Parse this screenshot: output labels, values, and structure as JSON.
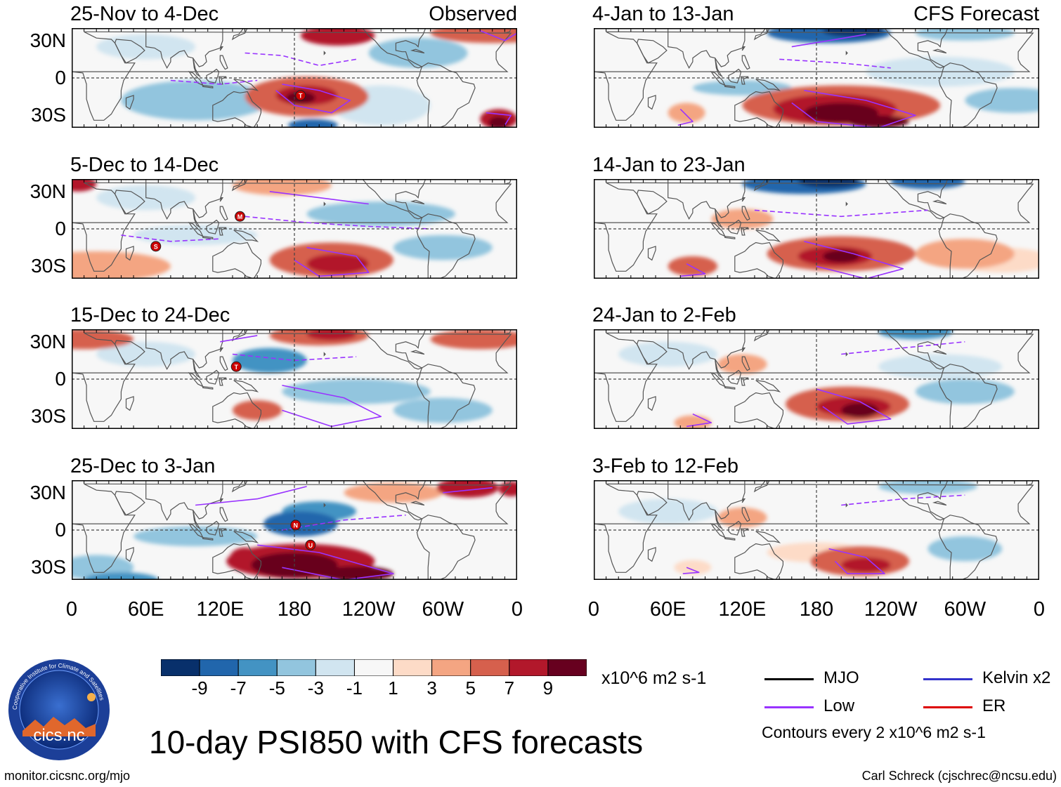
{
  "title": "10-day PSI850 with CFS forecasts",
  "units": "x10^6 m2 s-1",
  "contour_note": "Contours every 2 x10^6 m2 s-1",
  "footer_left": "monitor.cicsnc.org/mjo",
  "footer_right": "Carl Schreck (cjschrec@ncsu.edu)",
  "logo": {
    "text": "cics.nc",
    "ring_text": "Cooperative Institute for Climate and Satellites"
  },
  "column_tags": {
    "observed": "Observed",
    "forecast": "CFS Forecast"
  },
  "lat_labels": [
    "30N",
    "0",
    "30S"
  ],
  "lon_labels": [
    "0",
    "60E",
    "120E",
    "180",
    "120W",
    "60W",
    "0"
  ],
  "colorbar": {
    "labels": [
      "-9",
      "-7",
      "-5",
      "-3",
      "-1",
      "1",
      "3",
      "5",
      "7",
      "9"
    ],
    "colors": [
      "#08306b",
      "#2166ac",
      "#4393c3",
      "#92c5de",
      "#d1e5f0",
      "#f7f7f7",
      "#fddbc7",
      "#f4a582",
      "#d6604d",
      "#b2182b",
      "#67001f"
    ]
  },
  "legend": [
    {
      "label": "MJO",
      "color": "#000000"
    },
    {
      "label": "Kelvin x2",
      "color": "#3333cc"
    },
    {
      "label": "Low",
      "color": "#9933ff"
    },
    {
      "label": "ER",
      "color": "#dd0000"
    }
  ],
  "panels": [
    {
      "title": "25-Nov to 4-Dec",
      "tag": "Observed",
      "storms": [
        {
          "letter": "T",
          "lon": 185,
          "lat": -14
        }
      ]
    },
    {
      "title": "4-Jan to 13-Jan",
      "tag": "CFS Forecast",
      "storms": []
    },
    {
      "title": "5-Dec to 14-Dec",
      "tag": "",
      "storms": [
        {
          "letter": "M",
          "lon": 136,
          "lat": 10
        },
        {
          "letter": "S",
          "lon": 68,
          "lat": -14
        }
      ]
    },
    {
      "title": "14-Jan to 23-Jan",
      "tag": "",
      "storms": []
    },
    {
      "title": "15-Dec to 24-Dec",
      "tag": "",
      "storms": [
        {
          "letter": "T",
          "lon": 133,
          "lat": 10
        }
      ]
    },
    {
      "title": "24-Jan to 2-Feb",
      "tag": "",
      "storms": []
    },
    {
      "title": "25-Dec to 3-Jan",
      "tag": "",
      "storms": [
        {
          "letter": "N",
          "lon": 181,
          "lat": 4
        },
        {
          "letter": "U",
          "lon": 193,
          "lat": -12
        }
      ]
    },
    {
      "title": "3-Feb to 12-Feb",
      "tag": "",
      "storms": []
    }
  ]
}
